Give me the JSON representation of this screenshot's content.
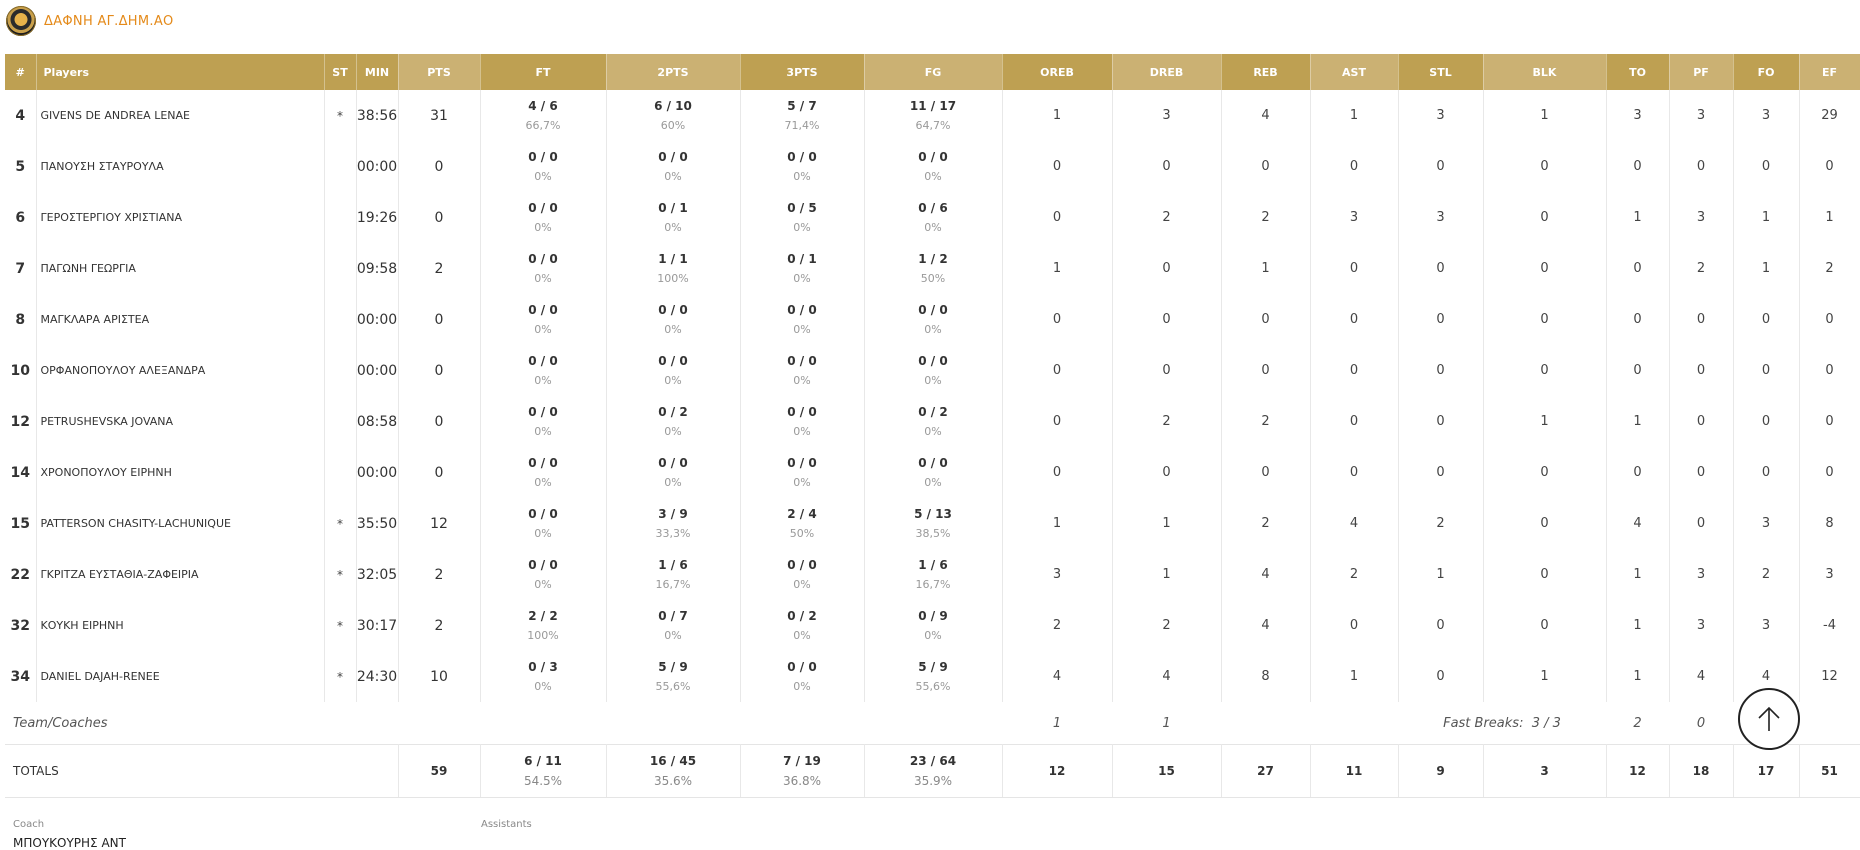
{
  "team": {
    "name": "ΔΑΦΝΗ ΑΓ.ΔΗΜ.ΑΟ"
  },
  "columns": {
    "num": "#",
    "players": "Players",
    "st": "ST",
    "min": "MIN",
    "pts": "PTS",
    "ft": "FT",
    "pts2": "2PTS",
    "pts3": "3PTS",
    "fg": "FG",
    "oreb": "OREB",
    "dreb": "DREB",
    "reb": "REB",
    "ast": "AST",
    "stl": "STL",
    "blk": "BLK",
    "to": "TO",
    "pf": "PF",
    "fo": "FO",
    "ef": "EF"
  },
  "players": [
    {
      "num": "4",
      "name": "GIVENS DE ANDREA LENAE",
      "st": "*",
      "min": "38:56",
      "pts": "31",
      "ft": "4 / 6",
      "ft_pct": "66,7%",
      "p2": "6 / 10",
      "p2_pct": "60%",
      "p3": "5 / 7",
      "p3_pct": "71,4%",
      "fg": "11 / 17",
      "fg_pct": "64,7%",
      "oreb": "1",
      "dreb": "3",
      "reb": "4",
      "ast": "1",
      "stl": "3",
      "blk": "1",
      "to": "3",
      "pf": "3",
      "fo": "3",
      "ef": "29"
    },
    {
      "num": "5",
      "name": "ΠΑΝΟΥΣΗ ΣΤΑΥΡΟΥΛΑ",
      "st": "",
      "min": "00:00",
      "pts": "0",
      "ft": "0 / 0",
      "ft_pct": "0%",
      "p2": "0 / 0",
      "p2_pct": "0%",
      "p3": "0 / 0",
      "p3_pct": "0%",
      "fg": "0 / 0",
      "fg_pct": "0%",
      "oreb": "0",
      "dreb": "0",
      "reb": "0",
      "ast": "0",
      "stl": "0",
      "blk": "0",
      "to": "0",
      "pf": "0",
      "fo": "0",
      "ef": "0"
    },
    {
      "num": "6",
      "name": "ΓΕΡΟΣΤΕΡΓΙΟΥ ΧΡΙΣΤΙΑΝΑ",
      "st": "",
      "min": "19:26",
      "pts": "0",
      "ft": "0 / 0",
      "ft_pct": "0%",
      "p2": "0 / 1",
      "p2_pct": "0%",
      "p3": "0 / 5",
      "p3_pct": "0%",
      "fg": "0 / 6",
      "fg_pct": "0%",
      "oreb": "0",
      "dreb": "2",
      "reb": "2",
      "ast": "3",
      "stl": "3",
      "blk": "0",
      "to": "1",
      "pf": "3",
      "fo": "1",
      "ef": "1"
    },
    {
      "num": "7",
      "name": "ΠΑΓΩΝΗ ΓΕΩΡΓΙΑ",
      "st": "",
      "min": "09:58",
      "pts": "2",
      "ft": "0 / 0",
      "ft_pct": "0%",
      "p2": "1 / 1",
      "p2_pct": "100%",
      "p3": "0 / 1",
      "p3_pct": "0%",
      "fg": "1 / 2",
      "fg_pct": "50%",
      "oreb": "1",
      "dreb": "0",
      "reb": "1",
      "ast": "0",
      "stl": "0",
      "blk": "0",
      "to": "0",
      "pf": "2",
      "fo": "1",
      "ef": "2"
    },
    {
      "num": "8",
      "name": "ΜΑΓΚΛΑΡΑ ΑΡΙΣΤΕΑ",
      "st": "",
      "min": "00:00",
      "pts": "0",
      "ft": "0 / 0",
      "ft_pct": "0%",
      "p2": "0 / 0",
      "p2_pct": "0%",
      "p3": "0 / 0",
      "p3_pct": "0%",
      "fg": "0 / 0",
      "fg_pct": "0%",
      "oreb": "0",
      "dreb": "0",
      "reb": "0",
      "ast": "0",
      "stl": "0",
      "blk": "0",
      "to": "0",
      "pf": "0",
      "fo": "0",
      "ef": "0"
    },
    {
      "num": "10",
      "name": "ΟΡΦΑΝΟΠΟΥΛΟΥ ΑΛΕΞΑΝΔΡΑ",
      "st": "",
      "min": "00:00",
      "pts": "0",
      "ft": "0 / 0",
      "ft_pct": "0%",
      "p2": "0 / 0",
      "p2_pct": "0%",
      "p3": "0 / 0",
      "p3_pct": "0%",
      "fg": "0 / 0",
      "fg_pct": "0%",
      "oreb": "0",
      "dreb": "0",
      "reb": "0",
      "ast": "0",
      "stl": "0",
      "blk": "0",
      "to": "0",
      "pf": "0",
      "fo": "0",
      "ef": "0"
    },
    {
      "num": "12",
      "name": "PETRUSHEVSKA JOVANA",
      "st": "",
      "min": "08:58",
      "pts": "0",
      "ft": "0 / 0",
      "ft_pct": "0%",
      "p2": "0 / 2",
      "p2_pct": "0%",
      "p3": "0 / 0",
      "p3_pct": "0%",
      "fg": "0 / 2",
      "fg_pct": "0%",
      "oreb": "0",
      "dreb": "2",
      "reb": "2",
      "ast": "0",
      "stl": "0",
      "blk": "1",
      "to": "1",
      "pf": "0",
      "fo": "0",
      "ef": "0"
    },
    {
      "num": "14",
      "name": "ΧΡΟΝΟΠΟΥΛΟΥ ΕΙΡΗΝΗ",
      "st": "",
      "min": "00:00",
      "pts": "0",
      "ft": "0 / 0",
      "ft_pct": "0%",
      "p2": "0 / 0",
      "p2_pct": "0%",
      "p3": "0 / 0",
      "p3_pct": "0%",
      "fg": "0 / 0",
      "fg_pct": "0%",
      "oreb": "0",
      "dreb": "0",
      "reb": "0",
      "ast": "0",
      "stl": "0",
      "blk": "0",
      "to": "0",
      "pf": "0",
      "fo": "0",
      "ef": "0"
    },
    {
      "num": "15",
      "name": "PATTERSON CHASITY-LACHUNIQUE",
      "st": "*",
      "min": "35:50",
      "pts": "12",
      "ft": "0 / 0",
      "ft_pct": "0%",
      "p2": "3 / 9",
      "p2_pct": "33,3%",
      "p3": "2 / 4",
      "p3_pct": "50%",
      "fg": "5 / 13",
      "fg_pct": "38,5%",
      "oreb": "1",
      "dreb": "1",
      "reb": "2",
      "ast": "4",
      "stl": "2",
      "blk": "0",
      "to": "4",
      "pf": "0",
      "fo": "3",
      "ef": "8"
    },
    {
      "num": "22",
      "name": "ΓΚΡΙΤΖΑ ΕΥΣΤΑΘΙΑ-ΖΑΦΕΙΡΙΑ",
      "st": "*",
      "min": "32:05",
      "pts": "2",
      "ft": "0 / 0",
      "ft_pct": "0%",
      "p2": "1 / 6",
      "p2_pct": "16,7%",
      "p3": "0 / 0",
      "p3_pct": "0%",
      "fg": "1 / 6",
      "fg_pct": "16,7%",
      "oreb": "3",
      "dreb": "1",
      "reb": "4",
      "ast": "2",
      "stl": "1",
      "blk": "0",
      "to": "1",
      "pf": "3",
      "fo": "2",
      "ef": "3"
    },
    {
      "num": "32",
      "name": "ΚΟΥΚΗ ΕΙΡΗΝΗ",
      "st": "*",
      "min": "30:17",
      "pts": "2",
      "ft": "2 / 2",
      "ft_pct": "100%",
      "p2": "0 / 7",
      "p2_pct": "0%",
      "p3": "0 / 2",
      "p3_pct": "0%",
      "fg": "0 / 9",
      "fg_pct": "0%",
      "oreb": "2",
      "dreb": "2",
      "reb": "4",
      "ast": "0",
      "stl": "0",
      "blk": "0",
      "to": "1",
      "pf": "3",
      "fo": "3",
      "ef": "-4"
    },
    {
      "num": "34",
      "name": "DANIEL DAJAH-RENEE",
      "st": "*",
      "min": "24:30",
      "pts": "10",
      "ft": "0 / 3",
      "ft_pct": "0%",
      "p2": "5 / 9",
      "p2_pct": "55,6%",
      "p3": "0 / 0",
      "p3_pct": "0%",
      "fg": "5 / 9",
      "fg_pct": "55,6%",
      "oreb": "4",
      "dreb": "4",
      "reb": "8",
      "ast": "1",
      "stl": "0",
      "blk": "1",
      "to": "1",
      "pf": "4",
      "fo": "4",
      "ef": "12"
    }
  ],
  "team_row": {
    "label": "Team/Coaches",
    "oreb": "1",
    "dreb": "1",
    "fast_breaks_label": "Fast Breaks:",
    "fast_breaks_value": "3 / 3",
    "to": "2",
    "pf": "0"
  },
  "totals": {
    "label": "TOTALS",
    "pts": "59",
    "ft": "6 / 11",
    "ft_pct": "54.5%",
    "p2": "16 / 45",
    "p2_pct": "35.6%",
    "p3": "7 / 19",
    "p3_pct": "36.8%",
    "fg": "23 / 64",
    "fg_pct": "35.9%",
    "oreb": "12",
    "dreb": "15",
    "reb": "27",
    "ast": "11",
    "stl": "9",
    "blk": "3",
    "to": "12",
    "pf": "18",
    "fo": "17",
    "ef": "51"
  },
  "staff": {
    "coach_label": "Coach",
    "assistants_label": "Assistants",
    "coach_name": "ΜΠΟΥΚΟΥΡΗΣ ΑΝΤ"
  },
  "icons": {
    "scroll_top": "arrow-up-icon",
    "logo": "team-logo"
  },
  "colors": {
    "header_dark": "#bea052",
    "header_light": "#cbb173",
    "team_name": "#e48a1a"
  }
}
